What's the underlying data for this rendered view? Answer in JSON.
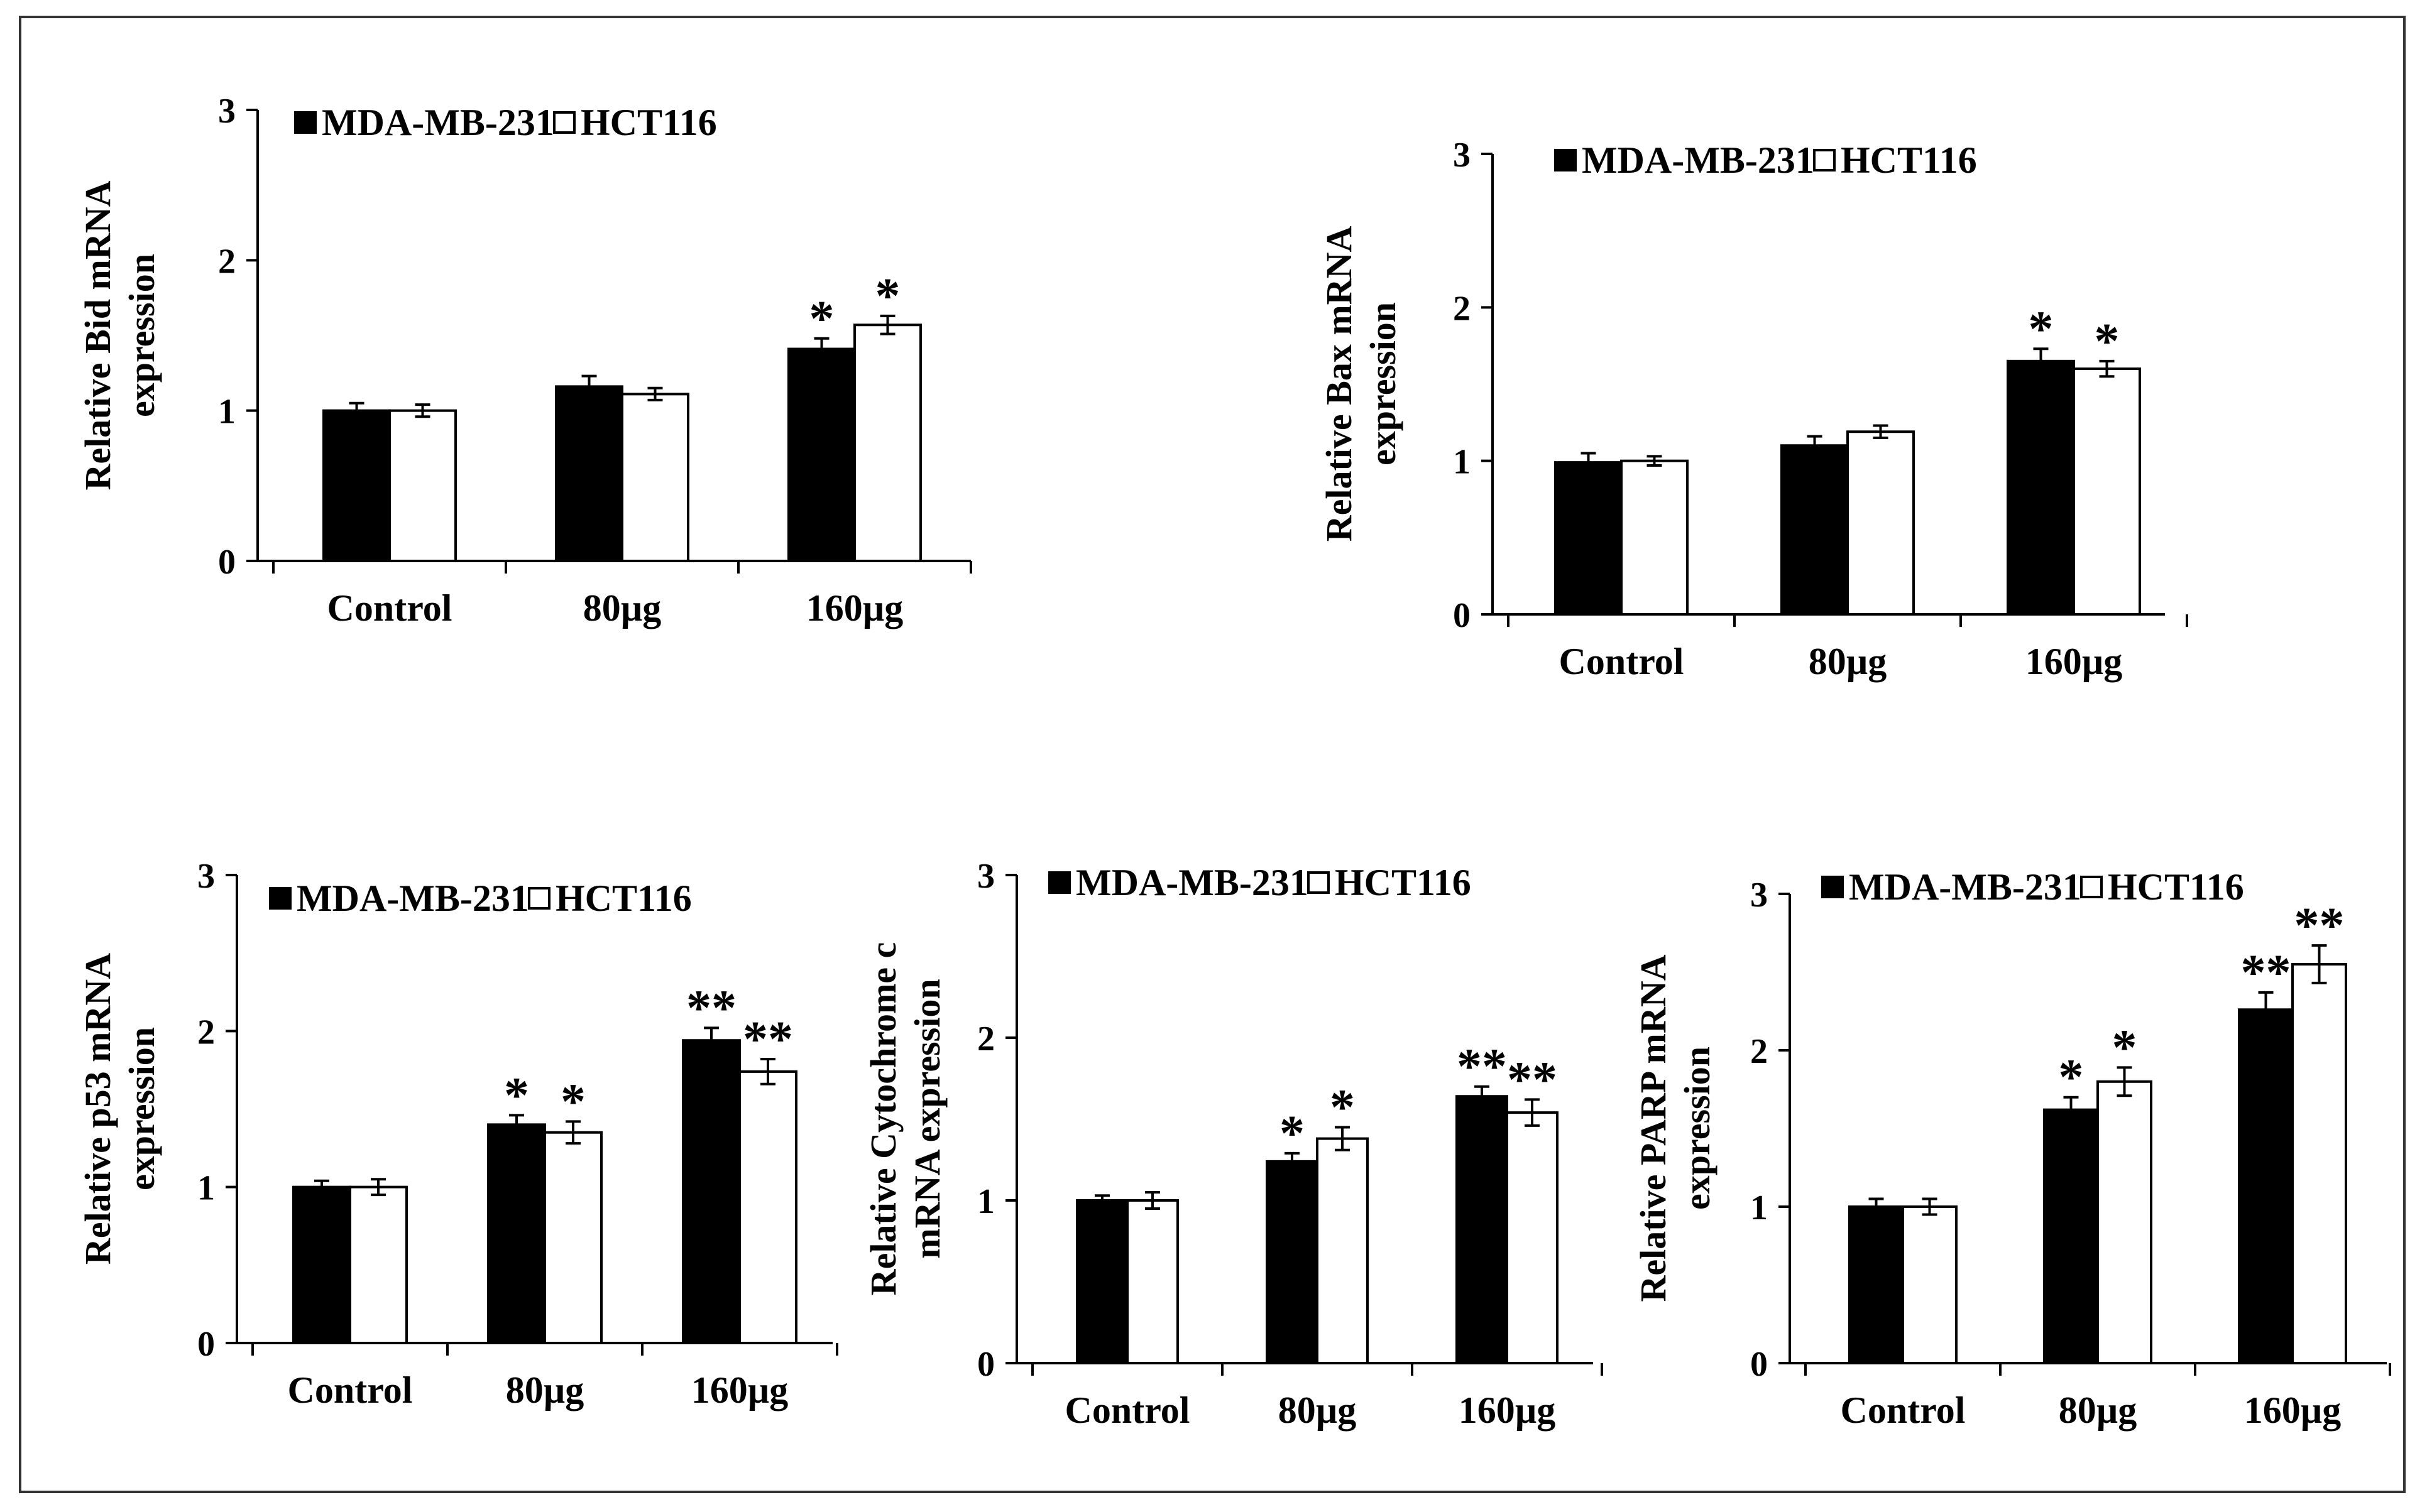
{
  "figure": {
    "border_color": "#333333",
    "background": "#ffffff"
  },
  "chart_data": [
    {
      "type": "bar",
      "title": "",
      "ylabel": "Relative Bid  mRNA\nexpression",
      "xlabel": "",
      "categories": [
        "Control",
        "80µg",
        "160µg"
      ],
      "ylim": [
        0,
        3
      ],
      "yticks": [
        0,
        1,
        2,
        3
      ],
      "legend": {
        "placement": "top-left",
        "entries": [
          "MDA-MB-231",
          "HCT116"
        ]
      },
      "series": [
        {
          "name": "MDA-MB-231",
          "color": "#000000",
          "values": [
            1.0,
            1.16,
            1.41
          ],
          "errors": [
            0.05,
            0.07,
            0.07
          ],
          "significance": [
            "",
            "",
            "*"
          ]
        },
        {
          "name": "HCT116",
          "color": "#ffffff",
          "values": [
            1.0,
            1.11,
            1.57
          ],
          "errors": [
            0.04,
            0.04,
            0.06
          ],
          "significance": [
            "",
            "",
            "*"
          ]
        }
      ]
    },
    {
      "type": "bar",
      "title": "",
      "ylabel": "Relative Bax  mRNA\nexpression",
      "xlabel": "",
      "categories": [
        "Control",
        "80µg",
        "160µg"
      ],
      "ylim": [
        0,
        3
      ],
      "yticks": [
        0,
        1,
        2,
        3
      ],
      "legend": {
        "placement": "top-left",
        "entries": [
          "MDA-MB-231",
          "HCT116"
        ]
      },
      "series": [
        {
          "name": "MDA-MB-231",
          "color": "#000000",
          "values": [
            0.99,
            1.1,
            1.65
          ],
          "errors": [
            0.06,
            0.06,
            0.08
          ],
          "significance": [
            "",
            "",
            "*"
          ]
        },
        {
          "name": "HCT116",
          "color": "#ffffff",
          "values": [
            1.0,
            1.19,
            1.6
          ],
          "errors": [
            0.03,
            0.04,
            0.05
          ],
          "significance": [
            "",
            "",
            "*"
          ]
        }
      ]
    },
    {
      "type": "bar",
      "title": "",
      "ylabel": "Relative p53 mRNA\nexpression",
      "xlabel": "",
      "categories": [
        "Control",
        "80µg",
        "160µg"
      ],
      "ylim": [
        0,
        3
      ],
      "yticks": [
        0,
        1,
        2,
        3
      ],
      "legend": {
        "placement": "top-left",
        "entries": [
          "MDA-MB-231",
          "HCT116"
        ]
      },
      "series": [
        {
          "name": "MDA-MB-231",
          "color": "#000000",
          "values": [
            1.0,
            1.4,
            1.94
          ],
          "errors": [
            0.04,
            0.06,
            0.08
          ],
          "significance": [
            "",
            "*",
            "**"
          ]
        },
        {
          "name": "HCT116",
          "color": "#ffffff",
          "values": [
            1.0,
            1.35,
            1.74
          ],
          "errors": [
            0.05,
            0.07,
            0.08
          ],
          "significance": [
            "",
            "*",
            "**"
          ]
        }
      ]
    },
    {
      "type": "bar",
      "title": "",
      "ylabel": "Relative Cytochrome c\nmRNA expression",
      "xlabel": "",
      "categories": [
        "Control",
        "80µg",
        "160µg"
      ],
      "ylim": [
        0,
        3
      ],
      "yticks": [
        0,
        1,
        2,
        3
      ],
      "legend": {
        "placement": "top-left",
        "entries": [
          "MDA-MB-231",
          "HCT116"
        ]
      },
      "series": [
        {
          "name": "MDA-MB-231",
          "color": "#000000",
          "values": [
            1.0,
            1.24,
            1.64
          ],
          "errors": [
            0.03,
            0.05,
            0.06
          ],
          "significance": [
            "",
            "*",
            "**"
          ]
        },
        {
          "name": "HCT116",
          "color": "#ffffff",
          "values": [
            1.0,
            1.38,
            1.54
          ],
          "errors": [
            0.05,
            0.07,
            0.08
          ],
          "significance": [
            "",
            "*",
            "**"
          ]
        }
      ]
    },
    {
      "type": "bar",
      "title": "",
      "ylabel": "Relative PARP  mRNA\nexpression",
      "xlabel": "",
      "categories": [
        "Control",
        "80µg",
        "160µg"
      ],
      "ylim": [
        0,
        3
      ],
      "yticks": [
        0,
        1,
        2,
        3
      ],
      "legend": {
        "placement": "top-left",
        "entries": [
          "MDA-MB-231",
          "HCT116"
        ]
      },
      "series": [
        {
          "name": "MDA-MB-231",
          "color": "#000000",
          "values": [
            1.0,
            1.62,
            2.26
          ],
          "errors": [
            0.05,
            0.08,
            0.11
          ],
          "significance": [
            "",
            "*",
            "**"
          ]
        },
        {
          "name": "HCT116",
          "color": "#ffffff",
          "values": [
            1.0,
            1.8,
            2.55
          ],
          "errors": [
            0.05,
            0.09,
            0.12
          ],
          "significance": [
            "",
            "*",
            "**"
          ]
        }
      ]
    }
  ]
}
